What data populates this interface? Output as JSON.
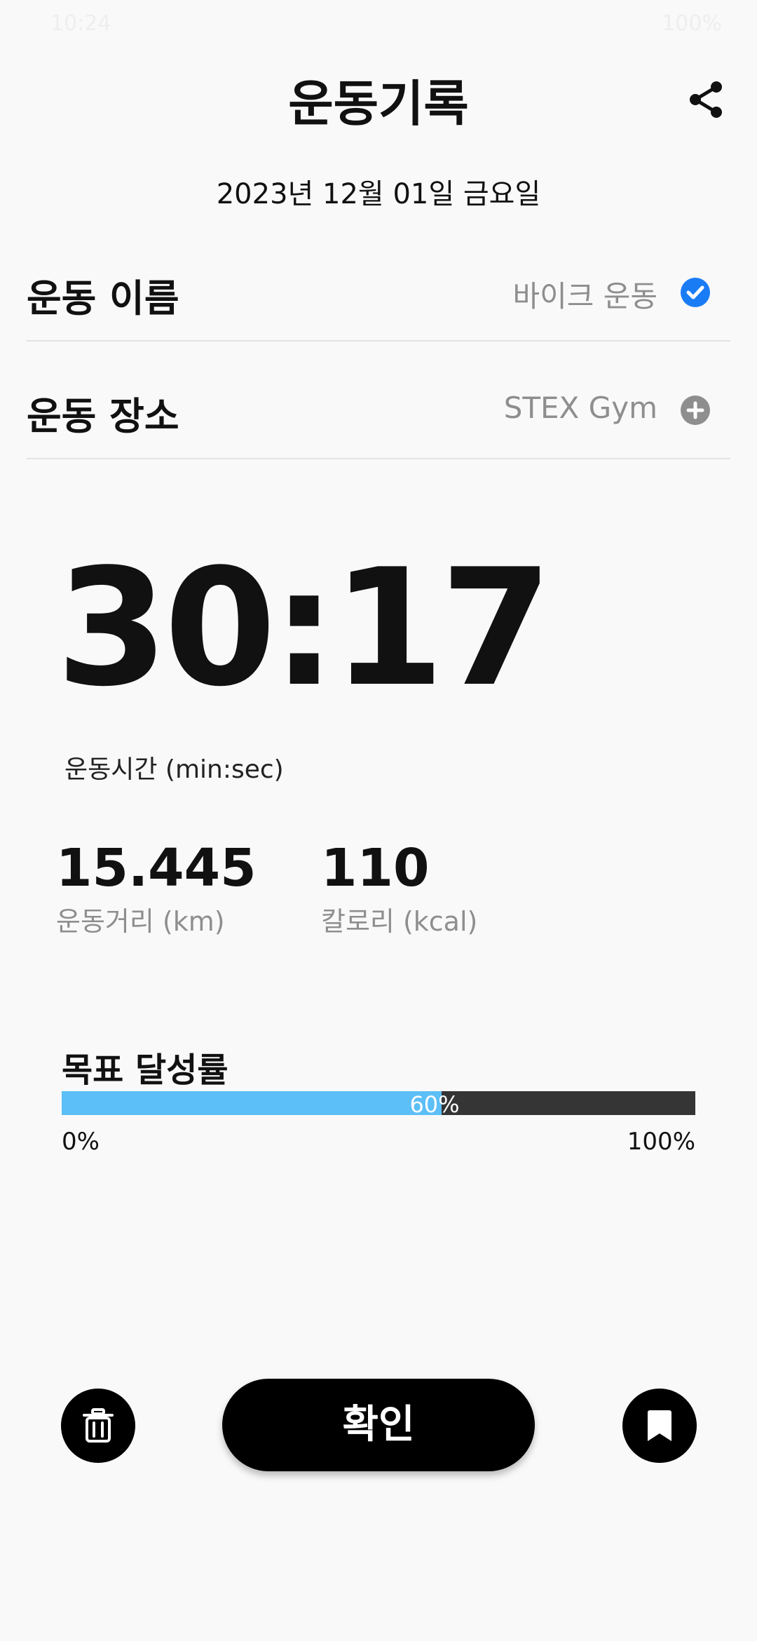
{
  "status_bar": {
    "time": "10:24",
    "battery": "100%"
  },
  "header": {
    "title": "운동기록",
    "share_icon": "share-icon"
  },
  "date": "2023년 12월 01일 금요일",
  "exercise_name": {
    "label": "운동 이름",
    "value": "바이크 운동",
    "icon": "check-circle-icon",
    "icon_color": "#1a7cf5"
  },
  "exercise_place": {
    "label": "운동 장소",
    "value": "STEX Gym",
    "icon": "plus-circle-icon",
    "icon_color": "#8e8e8e"
  },
  "timer": {
    "value": "30:17",
    "label": "운동시간 (min:sec)"
  },
  "stats": {
    "distance": {
      "value": "15.445",
      "label": "운동거리 (km)"
    },
    "calorie": {
      "value": "110",
      "label": "칼로리 (kcal)"
    }
  },
  "goal": {
    "title": "목표 달성률",
    "percent": 60,
    "percent_text": "60%",
    "min_label": "0%",
    "max_label": "100%",
    "fill_color": "#5cbff7",
    "track_color": "#353535"
  },
  "actions": {
    "delete_icon": "trash-icon",
    "confirm_label": "확인",
    "bookmark_icon": "bookmark-icon"
  }
}
